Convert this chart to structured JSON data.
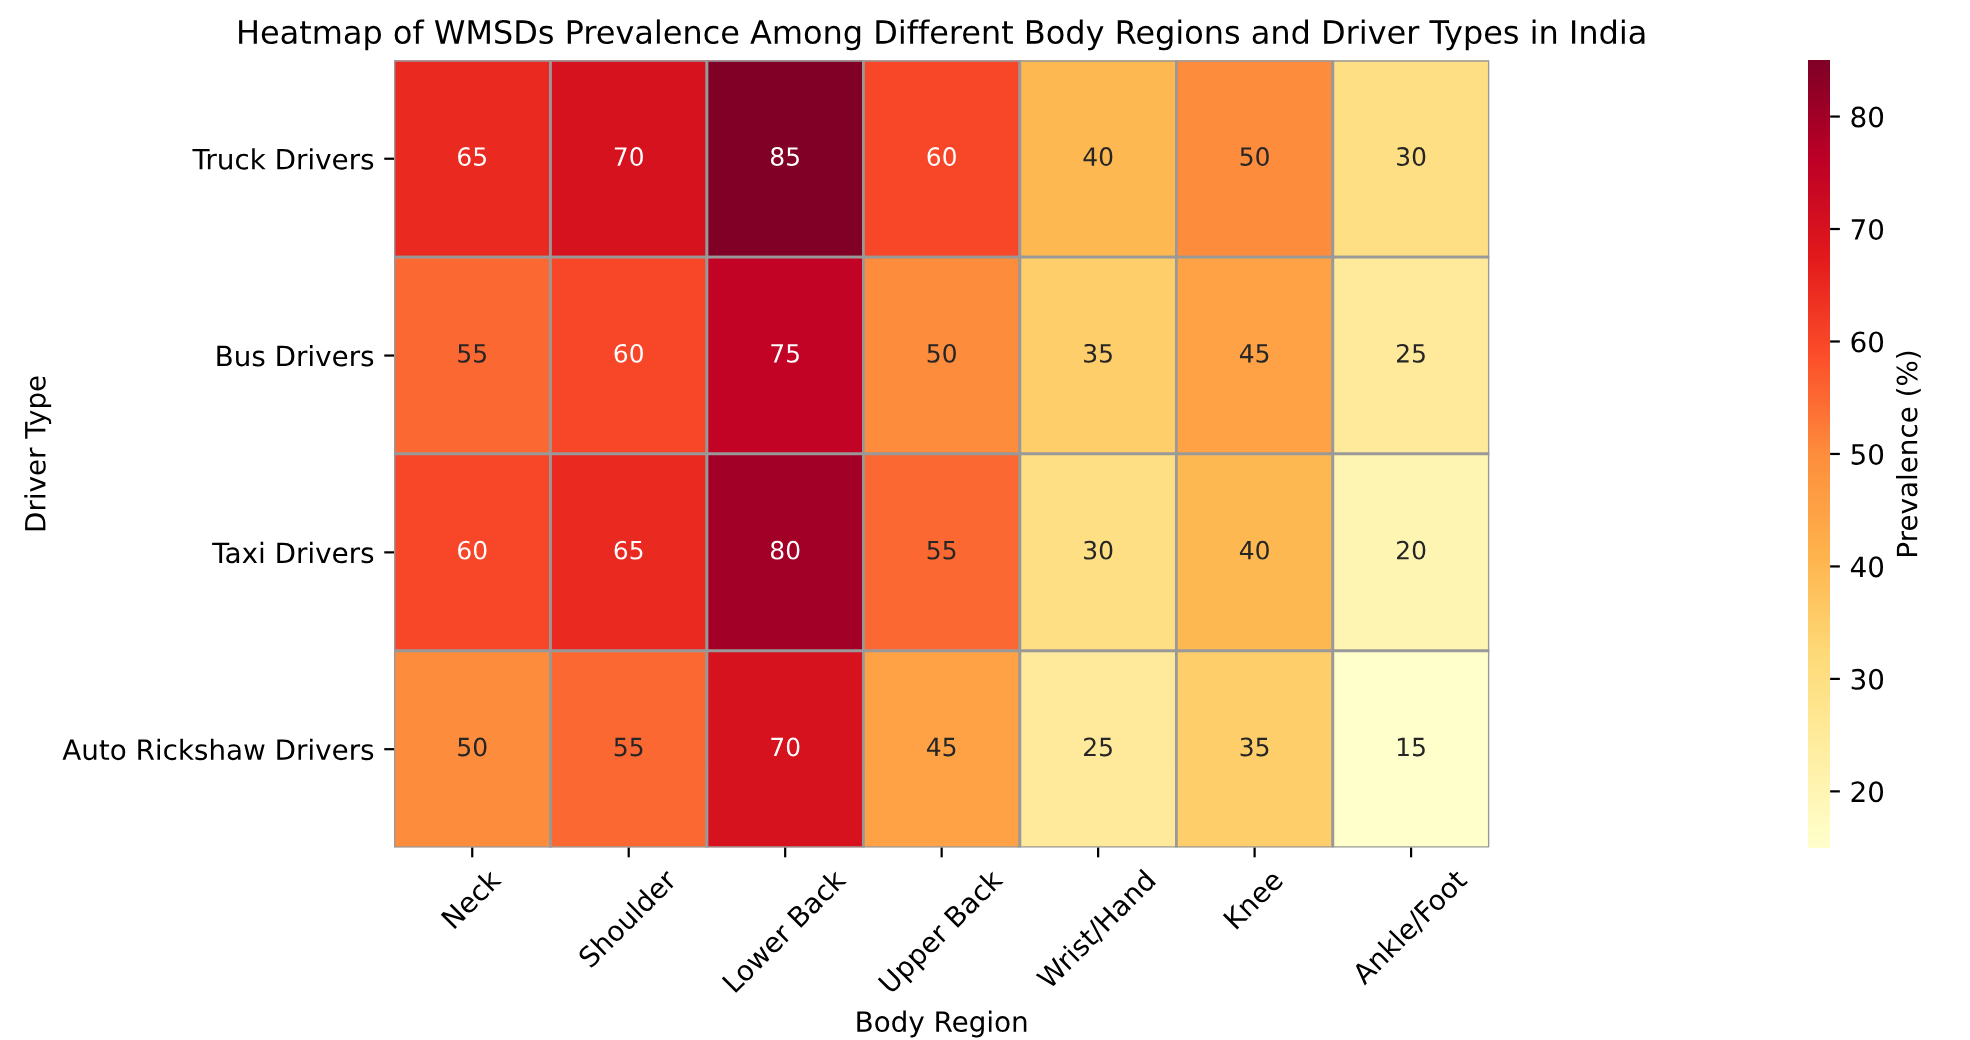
{
  "chart_data": {
    "type": "heatmap",
    "title": "Heatmap of WMSDs Prevalence Among Different Body Regions and Driver Types in India",
    "xlabel": "Body Region",
    "ylabel": "Driver Type",
    "clabel": "Prevalence (%)",
    "categories": [
      "Neck",
      "Shoulder",
      "Lower Back",
      "Upper Back",
      "Wrist/Hand",
      "Knee",
      "Ankle/Foot"
    ],
    "y_categories": [
      "Truck Drivers",
      "Bus Drivers",
      "Taxi Drivers",
      "Auto Rickshaw Drivers"
    ],
    "cells": [
      [
        65,
        70,
        85,
        60,
        40,
        50,
        30
      ],
      [
        55,
        60,
        75,
        50,
        35,
        45,
        25
      ],
      [
        60,
        65,
        80,
        55,
        30,
        40,
        20
      ],
      [
        50,
        55,
        70,
        45,
        25,
        35,
        15
      ]
    ],
    "clim": [
      15,
      85
    ],
    "cticks": [
      20,
      30,
      40,
      50,
      60,
      70,
      80
    ],
    "data_labels": true
  }
}
